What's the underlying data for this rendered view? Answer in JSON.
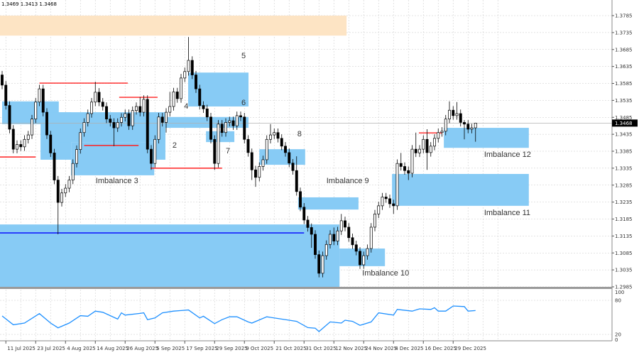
{
  "header": {
    "ohlc_readout": "1.3469 1.3413 1.3468"
  },
  "chart_data": {
    "type": "candlestick",
    "ylim": [
      1.2985,
      1.381
    ],
    "y_ticks": [
      "1.3785",
      "1.3735",
      "1.3685",
      "1.3635",
      "1.3585",
      "1.3535",
      "1.3485",
      "1.3435",
      "1.3385",
      "1.3335",
      "1.3285",
      "1.3235",
      "1.3185",
      "1.3135",
      "1.3085",
      "1.3035",
      "1.2985"
    ],
    "current_price": "1.3468",
    "x_ticks": [
      {
        "bar": 1,
        "label": "11 Jul 2025"
      },
      {
        "bar": 9,
        "label": "23 Jul 2025"
      },
      {
        "bar": 17,
        "label": "4 Aug 2025"
      },
      {
        "bar": 25,
        "label": "14 Aug 2025"
      },
      {
        "bar": 33,
        "label": "26 Aug 2025"
      },
      {
        "bar": 41,
        "label": "5 Sep 2025"
      },
      {
        "bar": 49,
        "label": "17 Sep 2025"
      },
      {
        "bar": 57,
        "label": "29 Sep 2025"
      },
      {
        "bar": 65,
        "label": "9 Oct 2025"
      },
      {
        "bar": 73,
        "label": "21 Oct 2025"
      },
      {
        "bar": 81,
        "label": "31 Oct 2025"
      },
      {
        "bar": 89,
        "label": "12 Nov 2025"
      },
      {
        "bar": 97,
        "label": "24 Nov 2025"
      },
      {
        "bar": 105,
        "label": "4 Dec 2025"
      },
      {
        "bar": 113,
        "label": "16 Dec 2025"
      },
      {
        "bar": 121,
        "label": "29 Dec 2025"
      }
    ],
    "colors": {
      "zone": "#87cbf5",
      "supply": "#fde4c4",
      "level_red": "#ff2020",
      "level_blue": "#0000ff",
      "bull": "#ffffff",
      "bear": "#000000",
      "indicator": "#1e90ff"
    },
    "ohlc": [
      [
        1.361,
        1.3622,
        1.3568,
        1.358
      ],
      [
        1.358,
        1.3592,
        1.3508,
        1.352
      ],
      [
        1.352,
        1.3532,
        1.3438,
        1.345
      ],
      [
        1.345,
        1.3462,
        1.3379,
        1.3391
      ],
      [
        1.3391,
        1.3417,
        1.3379,
        1.3405
      ],
      [
        1.3405,
        1.3417,
        1.3386,
        1.3398
      ],
      [
        1.3398,
        1.3432,
        1.3386,
        1.342
      ],
      [
        1.342,
        1.3445,
        1.3408,
        1.3433
      ],
      [
        1.3433,
        1.3492,
        1.3421,
        1.348
      ],
      [
        1.348,
        1.3542,
        1.3468,
        1.353
      ],
      [
        1.353,
        1.3581,
        1.3518,
        1.3569
      ],
      [
        1.3569,
        1.3581,
        1.3488,
        1.35
      ],
      [
        1.35,
        1.3512,
        1.3421,
        1.3433
      ],
      [
        1.3433,
        1.3445,
        1.3368,
        1.338
      ],
      [
        1.338,
        1.3392,
        1.3288,
        1.33
      ],
      [
        1.33,
        1.3312,
        1.314,
        1.3234
      ],
      [
        1.3234,
        1.3274,
        1.3222,
        1.3262
      ],
      [
        1.3262,
        1.3288,
        1.325,
        1.3276
      ],
      [
        1.3276,
        1.3312,
        1.3264,
        1.33
      ],
      [
        1.33,
        1.3361,
        1.3288,
        1.3349
      ],
      [
        1.3349,
        1.3402,
        1.3337,
        1.339
      ],
      [
        1.339,
        1.3452,
        1.3378,
        1.344
      ],
      [
        1.344,
        1.3482,
        1.3428,
        1.347
      ],
      [
        1.347,
        1.3508,
        1.3458,
        1.3496
      ],
      [
        1.3496,
        1.3542,
        1.3484,
        1.353
      ],
      [
        1.353,
        1.359,
        1.3518,
        1.3559
      ],
      [
        1.3559,
        1.3571,
        1.3518,
        1.353
      ],
      [
        1.353,
        1.3542,
        1.3505,
        1.3517
      ],
      [
        1.3517,
        1.3529,
        1.3468,
        1.348
      ],
      [
        1.348,
        1.3492,
        1.3458,
        1.347
      ],
      [
        1.347,
        1.3482,
        1.34,
        1.3454
      ],
      [
        1.3454,
        1.3482,
        1.3442,
        1.347
      ],
      [
        1.347,
        1.3497,
        1.3458,
        1.3485
      ],
      [
        1.3485,
        1.3508,
        1.3473,
        1.3496
      ],
      [
        1.3496,
        1.3508,
        1.3448,
        1.346
      ],
      [
        1.346,
        1.3517,
        1.3448,
        1.3505
      ],
      [
        1.3505,
        1.3529,
        1.3493,
        1.3517
      ],
      [
        1.3517,
        1.3545,
        1.3488,
        1.35
      ],
      [
        1.35,
        1.355,
        1.3488,
        1.3538
      ],
      [
        1.3538,
        1.355,
        1.3379,
        1.3391
      ],
      [
        1.3391,
        1.3403,
        1.333,
        1.3349
      ],
      [
        1.3349,
        1.3432,
        1.3337,
        1.342
      ],
      [
        1.342,
        1.3498,
        1.3408,
        1.3486
      ],
      [
        1.3486,
        1.3498,
        1.3458,
        1.347
      ],
      [
        1.347,
        1.3512,
        1.344,
        1.35
      ],
      [
        1.35,
        1.356,
        1.3488,
        1.3517
      ],
      [
        1.3517,
        1.3572,
        1.3505,
        1.356
      ],
      [
        1.356,
        1.3572,
        1.3528,
        1.354
      ],
      [
        1.354,
        1.3613,
        1.3528,
        1.3601
      ],
      [
        1.3601,
        1.3632,
        1.3589,
        1.362
      ],
      [
        1.362,
        1.3722,
        1.3608,
        1.3653
      ],
      [
        1.3653,
        1.3665,
        1.3598,
        1.361
      ],
      [
        1.361,
        1.3622,
        1.3557,
        1.3569
      ],
      [
        1.3569,
        1.3581,
        1.3508,
        1.352
      ],
      [
        1.352,
        1.3532,
        1.3498,
        1.351
      ],
      [
        1.351,
        1.3522,
        1.3474,
        1.3486
      ],
      [
        1.3486,
        1.3498,
        1.3408,
        1.342
      ],
      [
        1.342,
        1.3432,
        1.333,
        1.3349
      ],
      [
        1.3349,
        1.3477,
        1.3337,
        1.3465
      ],
      [
        1.3465,
        1.3477,
        1.3428,
        1.344
      ],
      [
        1.344,
        1.3482,
        1.3428,
        1.347
      ],
      [
        1.347,
        1.3487,
        1.3458,
        1.3475
      ],
      [
        1.3475,
        1.3487,
        1.3448,
        1.346
      ],
      [
        1.346,
        1.3502,
        1.3448,
        1.349
      ],
      [
        1.349,
        1.3502,
        1.3474,
        1.3486
      ],
      [
        1.3486,
        1.3498,
        1.3408,
        1.342
      ],
      [
        1.342,
        1.3432,
        1.3369,
        1.3381
      ],
      [
        1.3381,
        1.3393,
        1.33,
        1.333
      ],
      [
        1.333,
        1.3342,
        1.328,
        1.3308
      ],
      [
        1.3308,
        1.3352,
        1.3296,
        1.334
      ],
      [
        1.334,
        1.3372,
        1.3328,
        1.336
      ],
      [
        1.336,
        1.3432,
        1.3348,
        1.342
      ],
      [
        1.342,
        1.3465,
        1.3408,
        1.3433
      ],
      [
        1.3433,
        1.3452,
        1.3421,
        1.344
      ],
      [
        1.344,
        1.3452,
        1.3411,
        1.3423
      ],
      [
        1.3423,
        1.3435,
        1.3388,
        1.34
      ],
      [
        1.34,
        1.3412,
        1.3369,
        1.3381
      ],
      [
        1.3381,
        1.3393,
        1.3338,
        1.335
      ],
      [
        1.335,
        1.3362,
        1.3316,
        1.3328
      ],
      [
        1.3328,
        1.337,
        1.3254,
        1.3266
      ],
      [
        1.3266,
        1.3278,
        1.3208,
        1.322
      ],
      [
        1.322,
        1.3232,
        1.317,
        1.3182
      ],
      [
        1.3182,
        1.3194,
        1.3148,
        1.316
      ],
      [
        1.316,
        1.3172,
        1.31,
        1.314
      ],
      [
        1.314,
        1.3152,
        1.3068,
        1.308
      ],
      [
        1.308,
        1.3092,
        1.3013,
        1.3025
      ],
      [
        1.3025,
        1.3089,
        1.3013,
        1.3077
      ],
      [
        1.3077,
        1.3122,
        1.3065,
        1.311
      ],
      [
        1.311,
        1.3152,
        1.3098,
        1.314
      ],
      [
        1.314,
        1.316,
        1.3108,
        1.312
      ],
      [
        1.312,
        1.3162,
        1.3108,
        1.315
      ],
      [
        1.315,
        1.32,
        1.3138,
        1.318
      ],
      [
        1.318,
        1.3192,
        1.3149,
        1.3161
      ],
      [
        1.3161,
        1.3173,
        1.3118,
        1.313
      ],
      [
        1.313,
        1.3142,
        1.3097,
        1.3109
      ],
      [
        1.3109,
        1.3121,
        1.3078,
        1.309
      ],
      [
        1.309,
        1.3102,
        1.3038,
        1.305
      ],
      [
        1.305,
        1.3089,
        1.3038,
        1.3077
      ],
      [
        1.3077,
        1.311,
        1.3065,
        1.3098
      ],
      [
        1.3098,
        1.3173,
        1.3086,
        1.3161
      ],
      [
        1.3161,
        1.3212,
        1.3149,
        1.32
      ],
      [
        1.32,
        1.3236,
        1.3188,
        1.3224
      ],
      [
        1.3224,
        1.3262,
        1.3212,
        1.325
      ],
      [
        1.325,
        1.3262,
        1.3233,
        1.3245
      ],
      [
        1.3245,
        1.3257,
        1.3218,
        1.323
      ],
      [
        1.323,
        1.3242,
        1.32,
        1.3224
      ],
      [
        1.3224,
        1.3361,
        1.3212,
        1.3349
      ],
      [
        1.3349,
        1.338,
        1.3328,
        1.334
      ],
      [
        1.334,
        1.3352,
        1.3316,
        1.3328
      ],
      [
        1.3328,
        1.334,
        1.33,
        1.332
      ],
      [
        1.332,
        1.3403,
        1.3308,
        1.3391
      ],
      [
        1.3391,
        1.344,
        1.3368,
        1.338
      ],
      [
        1.338,
        1.3403,
        1.3368,
        1.3391
      ],
      [
        1.3391,
        1.3432,
        1.3379,
        1.342
      ],
      [
        1.342,
        1.345,
        1.333,
        1.3381
      ],
      [
        1.3381,
        1.3412,
        1.3369,
        1.34
      ],
      [
        1.34,
        1.3435,
        1.3388,
        1.3423
      ],
      [
        1.3423,
        1.3452,
        1.3411,
        1.344
      ],
      [
        1.344,
        1.3456,
        1.3428,
        1.3444
      ],
      [
        1.3444,
        1.3492,
        1.3432,
        1.348
      ],
      [
        1.348,
        1.3532,
        1.3468,
        1.3506
      ],
      [
        1.3506,
        1.3518,
        1.3478,
        1.349
      ],
      [
        1.349,
        1.353,
        1.3478,
        1.3496
      ],
      [
        1.3496,
        1.3508,
        1.3458,
        1.347
      ],
      [
        1.347,
        1.3477,
        1.342,
        1.3465
      ],
      [
        1.3465,
        1.3477,
        1.3438,
        1.345
      ],
      [
        1.345,
        1.3466,
        1.3438,
        1.3454
      ],
      [
        1.3454,
        1.3469,
        1.3413,
        1.3468
      ]
    ],
    "zones": [
      {
        "kind": "supply",
        "from_bar": -1,
        "to_bar": 92.4,
        "low": 1.3726,
        "high": 1.3785
      },
      {
        "kind": "zone",
        "from_bar": -1,
        "to_bar": 90.5,
        "low": 1.2985,
        "high": 1.3169
      },
      {
        "kind": "zone",
        "from_bar": 0,
        "to_bar": 15.2,
        "low": 1.3465,
        "high": 1.3532
      },
      {
        "kind": "zone",
        "from_bar": 10.3,
        "to_bar": 18.5,
        "low": 1.336,
        "high": 1.35
      },
      {
        "kind": "zone",
        "from_bar": 15.2,
        "to_bar": 43.8,
        "low": 1.3412,
        "high": 1.35
      },
      {
        "kind": "zone",
        "from_bar": 18.5,
        "to_bar": 40.8,
        "low": 1.3314,
        "high": 1.3412
      },
      {
        "kind": "zone",
        "from_bar": 40.8,
        "to_bar": 43.8,
        "low": 1.336,
        "high": 1.3479
      },
      {
        "kind": "zone",
        "from_bar": 49.9,
        "to_bar": 66.1,
        "low": 1.3517,
        "high": 1.3617
      },
      {
        "kind": "zone",
        "from_bar": 43.6,
        "to_bar": 66.1,
        "low": 1.3454,
        "high": 1.3486
      },
      {
        "kind": "zone",
        "from_bar": 54.7,
        "to_bar": 62.3,
        "low": 1.3412,
        "high": 1.3444
      },
      {
        "kind": "zone",
        "from_bar": 69,
        "to_bar": 81.3,
        "low": 1.3345,
        "high": 1.3391
      },
      {
        "kind": "zone",
        "from_bar": 79.4,
        "to_bar": 95.6,
        "low": 1.3213,
        "high": 1.3249
      },
      {
        "kind": "zone",
        "from_bar": 90.5,
        "to_bar": 102.7,
        "low": 1.3046,
        "high": 1.3098
      },
      {
        "kind": "zone",
        "from_bar": 85,
        "to_bar": 90.5,
        "low": 1.2985,
        "high": 1.3098
      },
      {
        "kind": "zone",
        "from_bar": 104.6,
        "to_bar": 141.3,
        "low": 1.3224,
        "high": 1.3318
      },
      {
        "kind": "zone",
        "from_bar": 118.5,
        "to_bar": 141.3,
        "low": 1.3395,
        "high": 1.3454
      }
    ],
    "levels": [
      {
        "color": "red",
        "from_bar": -1,
        "to_bar": 9,
        "price": 1.3368
      },
      {
        "color": "red",
        "from_bar": 10,
        "to_bar": 33.7,
        "price": 1.3586
      },
      {
        "color": "red",
        "from_bar": 22,
        "to_bar": 36.6,
        "price": 1.3402
      },
      {
        "color": "red",
        "from_bar": 31.4,
        "to_bar": 41.7,
        "price": 1.3544
      },
      {
        "color": "red",
        "from_bar": 39.8,
        "to_bar": 59,
        "price": 1.3335
      },
      {
        "color": "red",
        "from_bar": 111.8,
        "to_bar": 118,
        "price": 1.3439
      },
      {
        "color": "blue",
        "from_bar": -1,
        "to_bar": 81,
        "price": 1.3144
      }
    ],
    "labels": [
      {
        "text": "5",
        "bar": 64.2,
        "price": 1.3668
      },
      {
        "text": "6",
        "bar": 64.2,
        "price": 1.3529
      },
      {
        "text": "4",
        "bar": 48.8,
        "price": 1.3519
      },
      {
        "text": "2",
        "bar": 45.7,
        "price": 1.3404
      },
      {
        "text": "7",
        "bar": 60,
        "price": 1.3387
      },
      {
        "text": "8",
        "bar": 79.2,
        "price": 1.3437
      },
      {
        "text": "Imbalance 3",
        "bar": 25.1,
        "price": 1.3299
      },
      {
        "text": "Imbalance 9",
        "bar": 87,
        "price": 1.3299
      },
      {
        "text": "Imbalance 10",
        "bar": 96.6,
        "price": 1.3027
      },
      {
        "text": "Imbalance 11",
        "bar": 129.3,
        "price": 1.3205
      },
      {
        "text": "Imbalance 12",
        "bar": 129.3,
        "price": 1.3377
      }
    ],
    "indicator": {
      "ylim": [
        0,
        100
      ],
      "y_ticks": [
        "100",
        "80",
        "20",
        "0"
      ],
      "points": [
        [
          0,
          52.5
        ],
        [
          3,
          37
        ],
        [
          6,
          40
        ],
        [
          10,
          56.6
        ],
        [
          13,
          40
        ],
        [
          15,
          31.6
        ],
        [
          18,
          40
        ],
        [
          21,
          53
        ],
        [
          23,
          52
        ],
        [
          25,
          61
        ],
        [
          27,
          59
        ],
        [
          31,
          47
        ],
        [
          32,
          58
        ],
        [
          33,
          54
        ],
        [
          37,
          57
        ],
        [
          38,
          58
        ],
        [
          39,
          46
        ],
        [
          41,
          49
        ],
        [
          43,
          58
        ],
        [
          46,
          61
        ],
        [
          50,
          63
        ],
        [
          53,
          49
        ],
        [
          54,
          52
        ],
        [
          57,
          39
        ],
        [
          59,
          46
        ],
        [
          61,
          51
        ],
        [
          63,
          51
        ],
        [
          66,
          42
        ],
        [
          67,
          40
        ],
        [
          71,
          51
        ],
        [
          77,
          45
        ],
        [
          79,
          43
        ],
        [
          82,
          32
        ],
        [
          84,
          31
        ],
        [
          85,
          25
        ],
        [
          88,
          42
        ],
        [
          91,
          40
        ],
        [
          92,
          45
        ],
        [
          94,
          43
        ],
        [
          96,
          36
        ],
        [
          99,
          42
        ],
        [
          101,
          58
        ],
        [
          105,
          54
        ],
        [
          106,
          64
        ],
        [
          110,
          61
        ],
        [
          112,
          65
        ],
        [
          115,
          64
        ],
        [
          116,
          67
        ],
        [
          117,
          61
        ],
        [
          119,
          61
        ],
        [
          121,
          70
        ],
        [
          124,
          69
        ],
        [
          125,
          61
        ],
        [
          127,
          62
        ]
      ]
    }
  }
}
